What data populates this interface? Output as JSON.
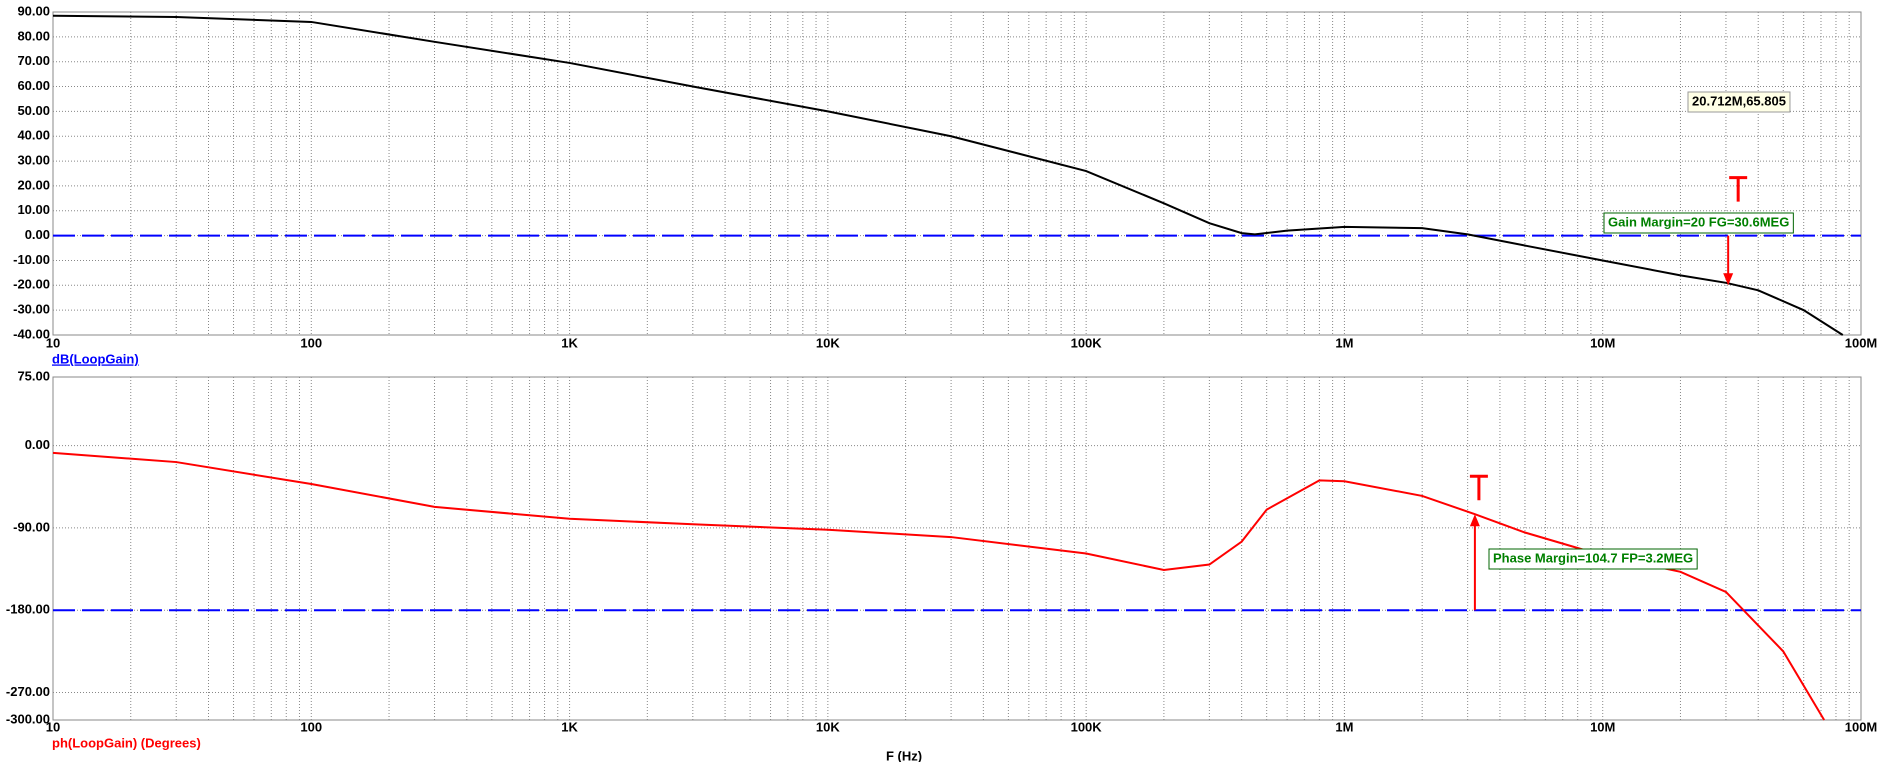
{
  "chart_data": [
    {
      "type": "line",
      "xscale": "log",
      "grid": true,
      "xlim": [
        10,
        100000000
      ],
      "xticks": [
        10,
        100,
        {
          "value": 1000,
          "label": "1K"
        },
        {
          "value": 10000,
          "label": "10K"
        },
        {
          "value": 100000,
          "label": "100K"
        },
        {
          "value": 1000000,
          "label": "1M"
        },
        {
          "value": 10000000,
          "label": "10M"
        },
        {
          "value": 100000000,
          "label": "100M"
        }
      ],
      "ylim": [
        -40,
        90
      ],
      "yticks": [
        {
          "value": 90,
          "label": "90.00"
        },
        {
          "value": 80,
          "label": "80.00"
        },
        {
          "value": 70,
          "label": "70.00"
        },
        {
          "value": 60,
          "label": "60.00"
        },
        {
          "value": 50,
          "label": "50.00"
        },
        {
          "value": 40,
          "label": "40.00"
        },
        {
          "value": 30,
          "label": "30.00"
        },
        {
          "value": 20,
          "label": "20.00"
        },
        {
          "value": 10,
          "label": "10.00"
        },
        {
          "value": 0,
          "label": "0.00"
        },
        {
          "value": -10,
          "label": "-10.00"
        },
        {
          "value": -20,
          "label": "-20.00"
        },
        {
          "value": -30,
          "label": "-30.00"
        },
        {
          "value": -40,
          "label": "-40.00"
        }
      ],
      "reference_line": 0,
      "reference_color": "#0000ff",
      "series": [
        {
          "name": "dB(LoopGain)",
          "color": "#000000",
          "label_color": "#0000ff",
          "x": [
            10,
            30,
            100,
            300,
            1000,
            3000,
            10000,
            30000,
            100000,
            200000,
            300000,
            400000,
            450000,
            600000,
            1000000,
            2000000,
            3000000,
            5000000,
            10000000,
            20000000,
            30000000,
            40000000,
            60000000,
            85000000
          ],
          "values": [
            88.5,
            88,
            86,
            78,
            69.5,
            60,
            50,
            40,
            26,
            13,
            5,
            1,
            0.5,
            2,
            3.5,
            3,
            0.5,
            -4,
            -10,
            -16,
            -19,
            -22,
            -30,
            -40
          ]
        }
      ],
      "annotations": [
        {
          "text": "20.712M,65.805",
          "style": "cursor"
        },
        {
          "text": "Gain Margin=20 FG=30.6MEG",
          "style": "margin"
        }
      ],
      "marker": {
        "x": 30600000,
        "from": 0,
        "to": -20,
        "color": "#ff0000"
      }
    },
    {
      "type": "line",
      "xscale": "log",
      "grid": true,
      "xlim": [
        10,
        100000000
      ],
      "xticks": [
        10,
        100,
        {
          "value": 1000,
          "label": "1K"
        },
        {
          "value": 10000,
          "label": "10K"
        },
        {
          "value": 100000,
          "label": "100K"
        },
        {
          "value": 1000000,
          "label": "1M"
        },
        {
          "value": 10000000,
          "label": "10M"
        },
        {
          "value": 100000000,
          "label": "100M"
        }
      ],
      "ylim": [
        -300,
        75
      ],
      "yticks": [
        {
          "value": 75,
          "label": "75.00"
        },
        {
          "value": 0,
          "label": "0.00"
        },
        {
          "value": -90,
          "label": "-90.00"
        },
        {
          "value": -180,
          "label": "-180.00"
        },
        {
          "value": -270,
          "label": "-270.00"
        },
        {
          "value": -300,
          "label": "-300.00"
        }
      ],
      "reference_line": -180,
      "reference_color": "#0000ff",
      "xlabel": "F (Hz)",
      "series": [
        {
          "name": "ph(LoopGain) (Degrees)",
          "color": "#ff0000",
          "label_color": "#ff0000",
          "x": [
            10,
            30,
            100,
            300,
            1000,
            3000,
            10000,
            30000,
            100000,
            200000,
            300000,
            400000,
            500000,
            800000,
            1000000,
            2000000,
            3200000,
            5000000,
            10000000,
            20000000,
            30000000,
            50000000,
            72000000
          ],
          "values": [
            -8,
            -18,
            -42,
            -67,
            -80,
            -86,
            -92,
            -100,
            -118,
            -136,
            -130,
            -105,
            -70,
            -38,
            -39,
            -55,
            -75,
            -95,
            -120,
            -138,
            -160,
            -225,
            -300
          ]
        }
      ],
      "annotations": [
        {
          "text": "Phase Margin=104.7 FP=3.2MEG",
          "style": "margin"
        }
      ],
      "marker": {
        "x": 3200000,
        "from": -180,
        "to": -75,
        "color": "#ff0000"
      }
    }
  ]
}
